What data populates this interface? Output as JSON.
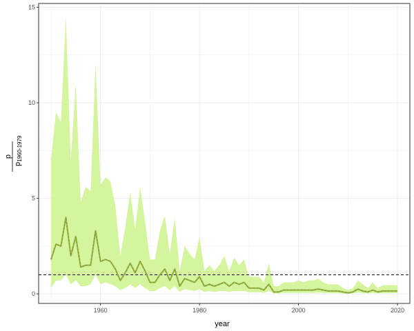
{
  "chart_data": {
    "type": "area",
    "title": "",
    "xlabel": "year",
    "ylabel_numerator": "p",
    "ylabel_denominator": "p",
    "ylabel_denominator_subscript": "1960-1979",
    "xlim": [
      1947.5,
      2022.5
    ],
    "ylim": [
      -0.5,
      15.2
    ],
    "x_ticks": [
      1960,
      1980,
      2000,
      2020
    ],
    "x_tick_labels": [
      "1960",
      "1980",
      "2000",
      "2020"
    ],
    "y_ticks": [
      0,
      5,
      10,
      15
    ],
    "y_tick_labels": [
      "0",
      "5",
      "10",
      "15"
    ],
    "reference_line": {
      "y": 1,
      "style": "dashed",
      "color": "#000000"
    },
    "grid": true,
    "colors": {
      "band": "#d4f59e",
      "line": "#9bb54a",
      "grid": "#ebebeb",
      "panel_border": "#333333",
      "background": "#ffffff"
    },
    "series": [
      {
        "x": [
          1950,
          1951,
          1952,
          1953,
          1954,
          1955,
          1956,
          1957,
          1958,
          1959,
          1960,
          1961,
          1962,
          1963,
          1964,
          1965,
          1966,
          1967,
          1968,
          1969,
          1970,
          1971,
          1972,
          1973,
          1974,
          1975,
          1976,
          1977,
          1978,
          1979,
          1980,
          1981,
          1982,
          1983,
          1984,
          1985,
          1986,
          1987,
          1988,
          1989,
          1990,
          1991,
          1992,
          1993,
          1994,
          1995,
          1996,
          1997,
          1998,
          1999,
          2000,
          2001,
          2002,
          2003,
          2004,
          2005,
          2006,
          2007,
          2008,
          2009,
          2010,
          2011,
          2012,
          2013,
          2014,
          2015,
          2016,
          2017,
          2018,
          2019,
          2020
        ],
        "y": [
          1.8,
          2.6,
          2.5,
          4.0,
          2.0,
          3.0,
          1.4,
          1.5,
          1.5,
          3.3,
          1.7,
          1.8,
          1.7,
          1.3,
          0.7,
          1.1,
          1.6,
          1.1,
          1.7,
          1.2,
          0.6,
          0.6,
          1.0,
          1.3,
          0.7,
          1.3,
          0.4,
          0.8,
          0.7,
          0.6,
          0.9,
          0.4,
          0.5,
          0.4,
          0.5,
          0.6,
          0.4,
          0.6,
          0.5,
          0.6,
          0.3,
          0.3,
          0.3,
          0.2,
          0.5,
          0.1,
          0.1,
          0.2,
          0.2,
          0.2,
          0.2,
          0.2,
          0.2,
          0.2,
          0.25,
          0.2,
          0.15,
          0.15,
          0.15,
          0.1,
          0.05,
          0.1,
          0.25,
          0.15,
          0.1,
          0.2,
          0.1,
          0.15,
          0.15,
          0.15,
          0.15
        ],
        "lower": [
          0.3,
          0.7,
          0.7,
          1.0,
          0.5,
          0.7,
          0.4,
          0.4,
          0.5,
          1.0,
          0.5,
          0.6,
          0.5,
          0.4,
          0.2,
          0.3,
          0.5,
          0.3,
          0.5,
          0.3,
          0.15,
          0.15,
          0.3,
          0.4,
          0.2,
          0.4,
          0.1,
          0.25,
          0.2,
          0.15,
          0.25,
          0.1,
          0.15,
          0.1,
          0.15,
          0.15,
          0.1,
          0.15,
          0.15,
          0.15,
          0.08,
          0.08,
          0.08,
          0.05,
          0.15,
          0.03,
          0.03,
          0.05,
          0.05,
          0.05,
          0.05,
          0.05,
          0.05,
          0.05,
          0.07,
          0.05,
          0.04,
          0.04,
          0.04,
          0.03,
          0.01,
          0.03,
          0.07,
          0.04,
          0.03,
          0.05,
          0.03,
          0.04,
          0.04,
          0.04,
          0.04
        ],
        "upper": [
          7.0,
          9.5,
          9.0,
          14.5,
          7.0,
          11.0,
          4.8,
          5.6,
          5.4,
          12.1,
          5.7,
          6.1,
          5.9,
          4.6,
          2.0,
          3.5,
          5.3,
          3.4,
          5.6,
          3.8,
          1.8,
          1.8,
          3.3,
          4.1,
          2.1,
          4.0,
          1.2,
          2.5,
          2.1,
          1.8,
          3.0,
          1.2,
          1.5,
          1.2,
          1.5,
          2.0,
          1.2,
          1.9,
          1.5,
          1.8,
          0.9,
          0.9,
          0.9,
          0.6,
          1.6,
          0.4,
          0.4,
          0.6,
          0.6,
          0.6,
          0.7,
          0.6,
          0.7,
          0.7,
          0.8,
          0.6,
          0.5,
          0.5,
          0.5,
          0.3,
          0.2,
          0.3,
          0.7,
          0.5,
          0.3,
          0.6,
          0.3,
          0.45,
          0.45,
          0.45,
          0.45
        ]
      }
    ]
  }
}
